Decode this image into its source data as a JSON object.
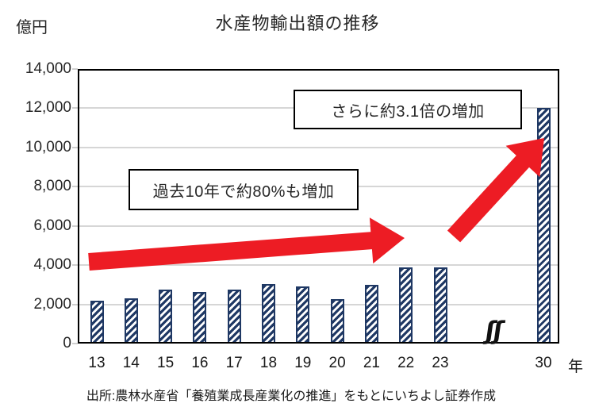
{
  "chart_data": {
    "type": "bar",
    "title": "水産物輸出額の推移",
    "unit_label": "億円",
    "x_axis_suffix": "年",
    "categories": [
      "13",
      "14",
      "15",
      "16",
      "17",
      "18",
      "19",
      "20",
      "21",
      "22",
      "23",
      "30"
    ],
    "values": [
      2200,
      2300,
      2750,
      2650,
      2750,
      3050,
      2900,
      2250,
      3000,
      3900,
      3900,
      12000
    ],
    "ylim": [
      0,
      14000
    ],
    "y_tick_values": [
      0,
      2000,
      4000,
      6000,
      8000,
      10000,
      12000,
      14000
    ],
    "y_tick_labels": [
      "0",
      "2,000",
      "4,000",
      "6,000",
      "8,000",
      "10,000",
      "12,000",
      "14,000"
    ],
    "grid": true,
    "legend": "none",
    "axis_break": {
      "between": [
        "23",
        "30"
      ],
      "symbol": "ʃʃ"
    },
    "annotations": [
      {
        "text": "過去10年で約80%も増加"
      },
      {
        "text": "さらに約3.1倍の増加"
      }
    ],
    "bar_color": "#1f3864",
    "bar_hatch": "white-diagonal-stripes",
    "arrow_color": "#ed1c24",
    "gridline_color": "#d6d6d6"
  },
  "source": "出所:農林水産省「養殖業成長産業化の推進」をもとにいちよし証券作成"
}
